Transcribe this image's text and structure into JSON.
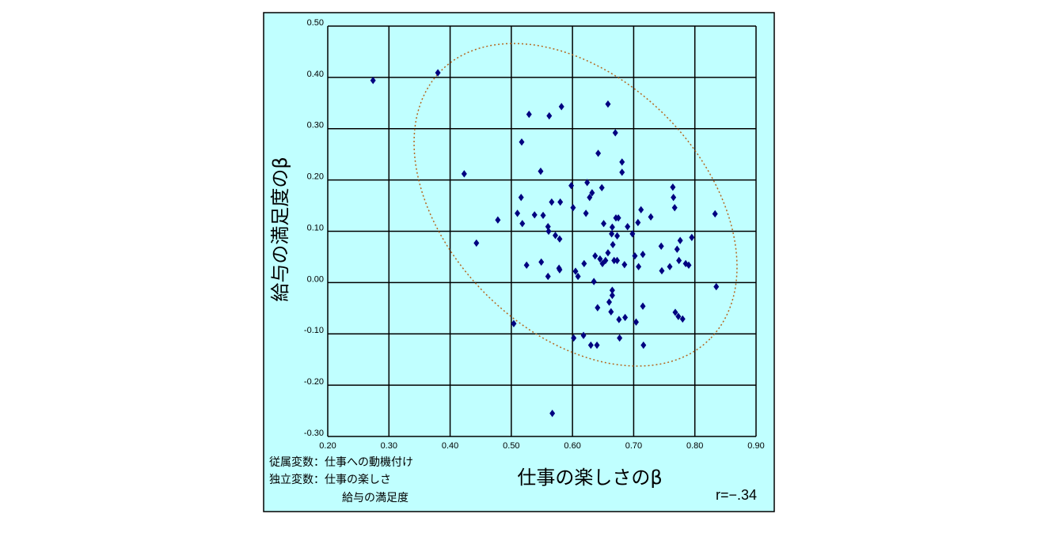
{
  "chart_data": {
    "type": "scatter",
    "xlabel": "仕事の楽しさのβ",
    "ylabel": "給与の満足度のβ",
    "annotations": [
      "従属変数：仕事への動機付け",
      "独立変数：仕事の楽しさ",
      "給与の満足度",
      "r=−.34"
    ],
    "color": "#000080",
    "grid": true,
    "xlim": [
      0.2,
      0.9
    ],
    "ylim": [
      -0.3,
      0.5
    ],
    "xticks": [
      {
        "value": 0.2,
        "label": "0.20"
      },
      {
        "value": 0.3,
        "label": "0.30"
      },
      {
        "value": 0.4,
        "label": "0.40"
      },
      {
        "value": 0.5,
        "label": "0.50"
      },
      {
        "value": 0.6,
        "label": "0.60"
      },
      {
        "value": 0.7,
        "label": "0.70"
      },
      {
        "value": 0.8,
        "label": "0.80"
      },
      {
        "value": 0.9,
        "label": "0.90"
      }
    ],
    "yticks": [
      {
        "value": -0.3,
        "label": "-0.30"
      },
      {
        "value": -0.2,
        "label": "-0.20"
      },
      {
        "value": -0.1,
        "label": "-0.10"
      },
      {
        "value": 0,
        "label": "0.00"
      },
      {
        "value": 0.1,
        "label": "0.10"
      },
      {
        "value": 0.2,
        "label": "0.20"
      },
      {
        "value": 0.3,
        "label": "0.30"
      },
      {
        "value": 0.4,
        "label": "0.40"
      },
      {
        "value": 0.5,
        "label": "0.50"
      }
    ],
    "x": [
      0.274,
      0.38,
      0.423,
      0.443,
      0.478,
      0.504,
      0.51,
      0.516,
      0.517,
      0.518,
      0.525,
      0.529,
      0.538,
      0.548,
      0.549,
      0.552,
      0.56,
      0.561,
      0.562,
      0.56,
      0.566,
      0.572,
      0.578,
      0.579,
      0.582,
      0.58,
      0.579,
      0.567,
      0.598,
      0.601,
      0.605,
      0.602,
      0.609,
      0.618,
      0.619,
      0.622,
      0.624,
      0.628,
      0.63,
      0.632,
      0.635,
      0.637,
      0.64,
      0.641,
      0.642,
      0.645,
      0.648,
      0.649,
      0.651,
      0.654,
      0.658,
      0.658,
      0.66,
      0.663,
      0.664,
      0.665,
      0.665,
      0.665,
      0.666,
      0.668,
      0.67,
      0.671,
      0.673,
      0.673,
      0.675,
      0.676,
      0.677,
      0.681,
      0.681,
      0.685,
      0.686,
      0.69,
      0.698,
      0.702,
      0.704,
      0.707,
      0.708,
      0.712,
      0.715,
      0.715,
      0.716,
      0.728,
      0.745,
      0.746,
      0.759,
      0.764,
      0.765,
      0.767,
      0.768,
      0.771,
      0.773,
      0.774,
      0.776,
      0.78,
      0.785,
      0.79,
      0.795,
      0.833,
      0.835
    ],
    "values": [
      0.394,
      0.409,
      0.212,
      0.077,
      0.122,
      -0.08,
      0.135,
      0.166,
      0.274,
      0.115,
      0.034,
      0.328,
      0.132,
      0.217,
      0.04,
      0.131,
      0.109,
      0.1,
      0.325,
      0.012,
      0.157,
      0.092,
      0.028,
      0.025,
      0.343,
      0.157,
      0.085,
      -0.255,
      0.189,
      0.146,
      0.022,
      -0.108,
      0.012,
      -0.103,
      0.037,
      0.135,
      0.195,
      0.166,
      -0.122,
      0.175,
      0.002,
      0.052,
      -0.122,
      -0.049,
      0.252,
      0.046,
      0.185,
      0.037,
      0.115,
      0.043,
      0.348,
      0.058,
      -0.038,
      -0.057,
      0.095,
      0.108,
      -0.015,
      -0.025,
      0.074,
      0.043,
      0.292,
      0.126,
      0.091,
      0.043,
      0.126,
      -0.072,
      -0.108,
      0.215,
      0.235,
      0.035,
      -0.068,
      0.109,
      0.095,
      0.052,
      -0.077,
      0.117,
      0.031,
      0.142,
      0.055,
      -0.046,
      -0.122,
      0.128,
      0.071,
      0.023,
      0.031,
      0.186,
      0.166,
      0.146,
      -0.058,
      0.065,
      -0.066,
      0.043,
      0.082,
      -0.071,
      0.037,
      0.034,
      0.088,
      0.134,
      -0.008
    ]
  }
}
